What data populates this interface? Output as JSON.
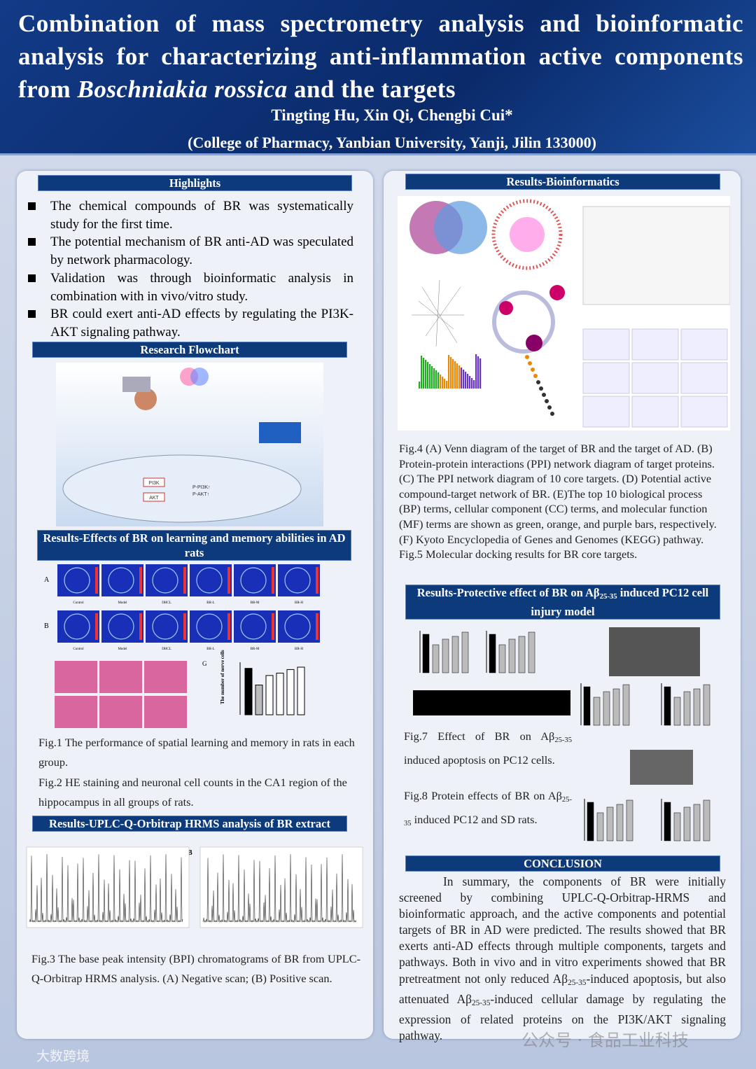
{
  "header": {
    "title": [
      "Combination of mass spectrometry analysis and bioinformatic analysis for characterizing anti-inflammation active components from ",
      "Boschniakia rossica",
      " and the targets"
    ],
    "authors": "Tingting Hu, Xin Qi, Chengbi Cui*",
    "affiliation": "(College of Pharmacy, Yanbian University, Yanji, Jilin 133000)"
  },
  "left": {
    "highlights": {
      "heading": "Highlights",
      "items": [
        "The chemical compounds of BR was systematically study for the first time.",
        "The potential mechanism of BR anti-AD was speculated by network pharmacology.",
        "Validation was through bioinformatic analysis in combination with in vivo/vitro study.",
        "BR could exert anti-AD effects by regulating the PI3K-AKT signaling pathway."
      ]
    },
    "flowchart": {
      "heading": "Research Flowchart",
      "labels": [
        "PI3K",
        "AKT",
        "P-PI3K↑",
        "P-AKT↑"
      ]
    },
    "effects": {
      "heading": "Results-Effects of BR on learning and memory abilities in AD rats",
      "row_labels": [
        "A",
        "B"
      ],
      "groups": [
        "Control",
        "Model",
        "DHCL",
        "BR-L",
        "BR-M",
        "BR-H"
      ],
      "panel_g": "G",
      "y_label": "The number of nerve cells",
      "captions": [
        "Fig.1 The performance of spatial learning and memory in rats in each group.",
        "Fig.2 HE staining and neuronal cell counts in the CA1 region of the hippocampus in all groups of rats."
      ]
    },
    "uplc": {
      "heading": "Results-UPLC-Q-Orbitrap HRMS analysis of BR extract",
      "panel_b": "B",
      "caption": "Fig.3 The base peak intensity (BPI) chromatograms of BR from UPLC- Q-Orbitrap HRMS analysis. (A) Negative scan; (B) Positive scan."
    }
  },
  "right": {
    "bioinfo": {
      "heading": "Results-Bioinformatics",
      "caption": [
        "Fig.4 (A) Venn diagram of the target of BR and the target of AD. (B) Protein-protein interactions (PPI) network diagram of target proteins. (C) The PPI network diagram of 10 core targets. (D) Potential active compound-target network of BR. (E)The top 10 biological process (BP) terms, cellular component (CC) terms, and molecular function (MF) terms are shown as green, orange, and purple bars, respectively. (F) Kyoto Encyclopedia of Genes and Genomes (KEGG) pathway.",
        "Fig.5 Molecular docking results for BR core targets."
      ]
    },
    "protective": {
      "heading": [
        "Results-Protective effect of BR on Aβ",
        "25-35",
        " induced PC12 cell injury model"
      ],
      "fig7": [
        "Fig.7 Effect of BR on Aβ",
        "25-35",
        " induced apoptosis on PC12 cells."
      ],
      "fig8": [
        "Fig.8 Protein effects of BR on Aβ",
        "25-35",
        " induced PC12 and SD rats."
      ]
    },
    "conclusion": {
      "heading": "CONCLUSION",
      "text": [
        "In summary, the components of BR were initially screened by combining UPLC-Q-Orbitrap-HRMS and bioinformatic approach, and the active components and potential targets of BR in AD were predicted. The results showed that BR exerts anti-AD effects through multiple components, targets and pathways. Both in vivo and in vitro experiments showed that BR pretreatment not only reduced Aβ",
        "25-35",
        "-induced apoptosis, but also attenuated Aβ",
        "25-35",
        "-induced cellular damage by regulating the expression of related proteins on the PI3K/AKT signaling pathway."
      ]
    }
  },
  "watermarks": [
    "公众号 · 食品工业科技",
    "大数跨境"
  ]
}
